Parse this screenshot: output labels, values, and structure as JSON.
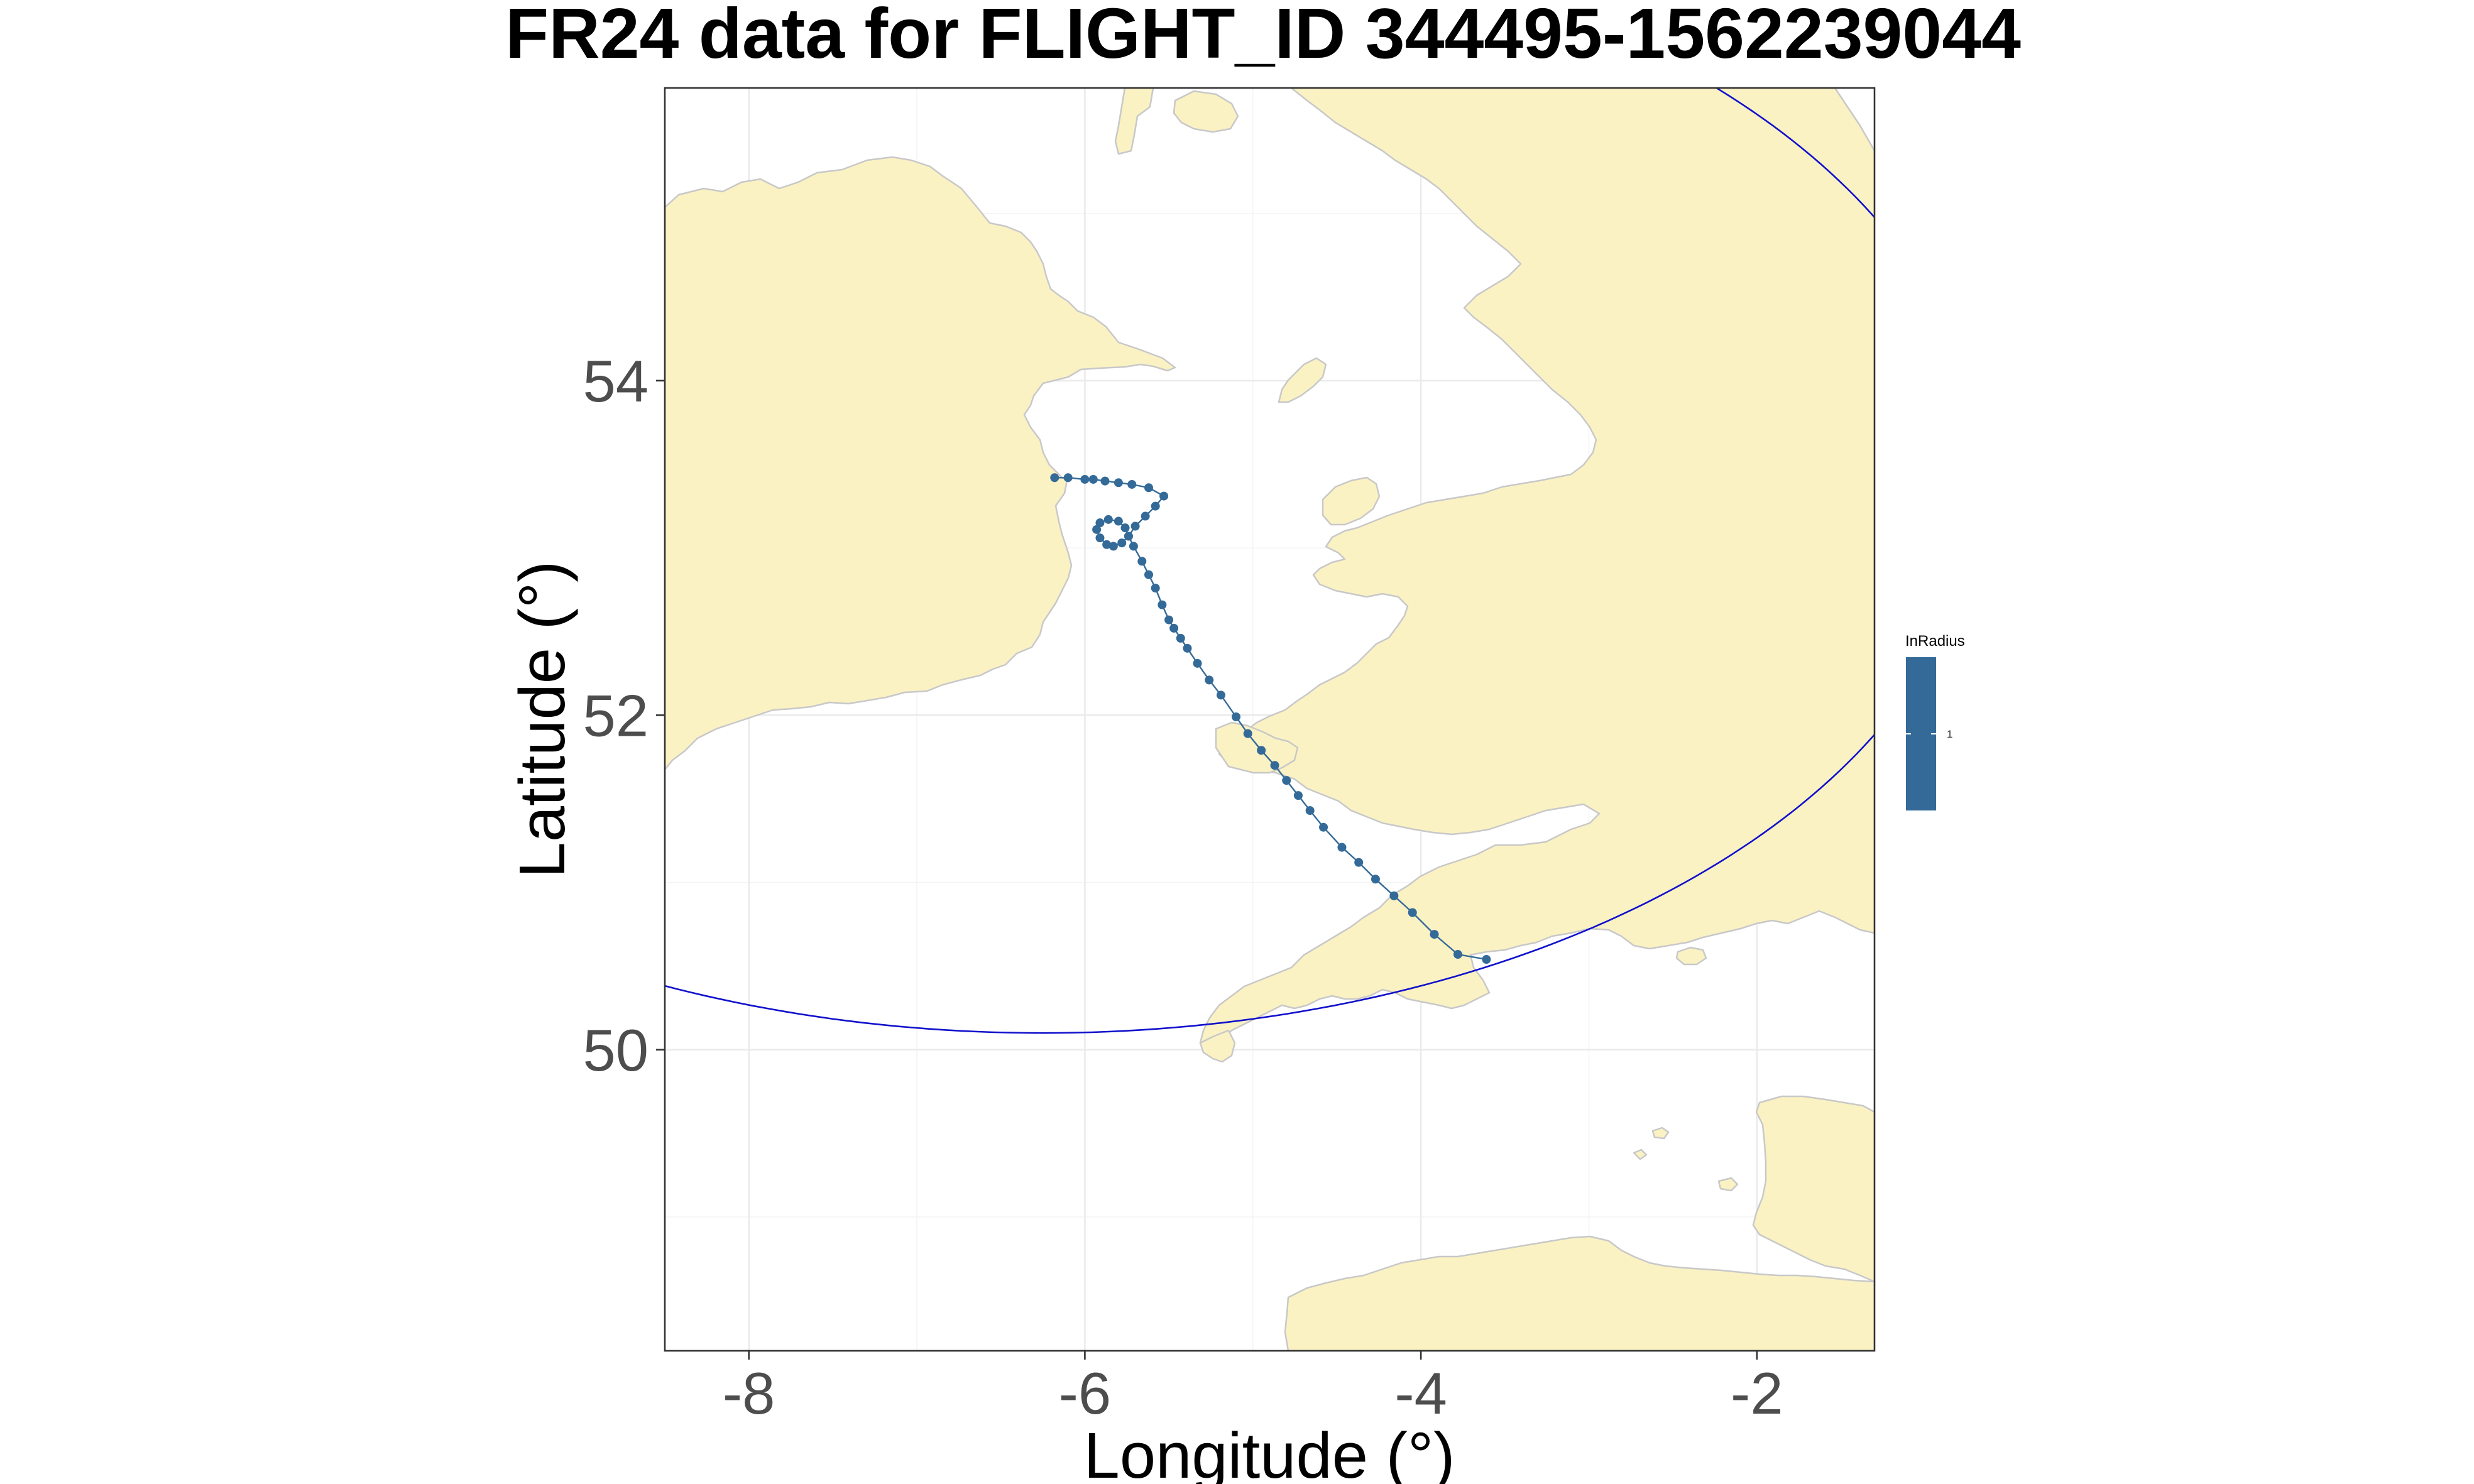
{
  "chart_data": {
    "type": "scatter",
    "title": "FR24 data for FLIGHT_ID 344495-1562239044",
    "xlabel": "Longitude (°)",
    "ylabel": "Latitude (°)",
    "xlim": [
      -8.5,
      -1.3
    ],
    "ylim": [
      48.2,
      55.75
    ],
    "x_ticks": [
      -8,
      -6,
      -4,
      -2
    ],
    "x_tick_labels": [
      "-8",
      "-6",
      "-4",
      "-2"
    ],
    "y_ticks": [
      50,
      52,
      54
    ],
    "y_tick_labels": [
      "50",
      "52",
      "54"
    ],
    "grid": true,
    "legend": {
      "title": "InRadius",
      "entries": [
        "1"
      ],
      "position": "right"
    },
    "colors": {
      "track": "#336a98",
      "radius_circle": "#1010cc",
      "land": "#fbf2c4",
      "land_border": "#c8c8c8"
    },
    "radius_circle": {
      "center_lon": -6.25,
      "center_lat": 53.43,
      "min_lat_on_circle": 50.1
    },
    "series": [
      {
        "points": [
          {
            "lon": -6.18,
            "lat": 53.42
          },
          {
            "lon": -6.1,
            "lat": 53.42
          },
          {
            "lon": -6.0,
            "lat": 53.41
          },
          {
            "lon": -5.95,
            "lat": 53.41
          },
          {
            "lon": -5.88,
            "lat": 53.4
          },
          {
            "lon": -5.8,
            "lat": 53.39
          },
          {
            "lon": -5.72,
            "lat": 53.38
          },
          {
            "lon": -5.62,
            "lat": 53.36
          },
          {
            "lon": -5.53,
            "lat": 53.31
          },
          {
            "lon": -5.58,
            "lat": 53.25
          },
          {
            "lon": -5.64,
            "lat": 53.19
          },
          {
            "lon": -5.7,
            "lat": 53.13
          },
          {
            "lon": -5.74,
            "lat": 53.07
          },
          {
            "lon": -5.78,
            "lat": 53.03
          },
          {
            "lon": -5.83,
            "lat": 53.01
          },
          {
            "lon": -5.87,
            "lat": 53.02
          },
          {
            "lon": -5.91,
            "lat": 53.06
          },
          {
            "lon": -5.93,
            "lat": 53.11
          },
          {
            "lon": -5.91,
            "lat": 53.15
          },
          {
            "lon": -5.86,
            "lat": 53.17
          },
          {
            "lon": -5.8,
            "lat": 53.16
          },
          {
            "lon": -5.76,
            "lat": 53.12
          },
          {
            "lon": -5.74,
            "lat": 53.07
          },
          {
            "lon": -5.71,
            "lat": 53.01
          },
          {
            "lon": -5.66,
            "lat": 52.92
          },
          {
            "lon": -5.62,
            "lat": 52.84
          },
          {
            "lon": -5.58,
            "lat": 52.76
          },
          {
            "lon": -5.54,
            "lat": 52.66
          },
          {
            "lon": -5.5,
            "lat": 52.57
          },
          {
            "lon": -5.47,
            "lat": 52.52
          },
          {
            "lon": -5.43,
            "lat": 52.46
          },
          {
            "lon": -5.39,
            "lat": 52.4
          },
          {
            "lon": -5.33,
            "lat": 52.31
          },
          {
            "lon": -5.26,
            "lat": 52.21
          },
          {
            "lon": -5.19,
            "lat": 52.12
          },
          {
            "lon": -5.1,
            "lat": 51.99
          },
          {
            "lon": -5.03,
            "lat": 51.89
          },
          {
            "lon": -4.95,
            "lat": 51.79
          },
          {
            "lon": -4.87,
            "lat": 51.7
          },
          {
            "lon": -4.8,
            "lat": 51.61
          },
          {
            "lon": -4.73,
            "lat": 51.52
          },
          {
            "lon": -4.66,
            "lat": 51.43
          },
          {
            "lon": -4.58,
            "lat": 51.33
          },
          {
            "lon": -4.47,
            "lat": 51.21
          },
          {
            "lon": -4.37,
            "lat": 51.12
          },
          {
            "lon": -4.27,
            "lat": 51.02
          },
          {
            "lon": -4.16,
            "lat": 50.92
          },
          {
            "lon": -4.05,
            "lat": 50.82
          },
          {
            "lon": -3.92,
            "lat": 50.69
          },
          {
            "lon": -3.78,
            "lat": 50.57
          },
          {
            "lon": -3.61,
            "lat": 50.54
          }
        ]
      }
    ]
  }
}
